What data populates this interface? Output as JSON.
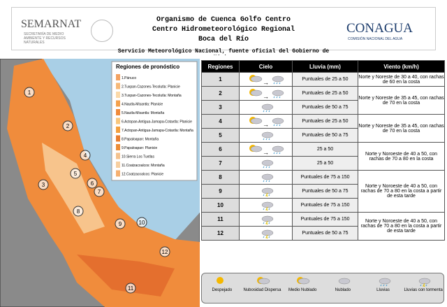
{
  "header": {
    "left_logo": "SEMARNAT",
    "left_subtitle": "SECRETARÍA DE MEDIO AMBIENTE Y RECURSOS NATURALES",
    "title_lines": [
      "Organismo de Cuenca Golfo Centro",
      "Centro Hidrometeorológico Regional",
      "Boca del Río"
    ],
    "service": "Servicio Meteorológico Nacional, fuente oficial del Gobierno de México",
    "right_logo": "CONAGUA",
    "right_subtitle": "COMISIÓN NACIONAL DEL AGUA"
  },
  "map": {
    "legend_title": "Regiones de pronóstico",
    "legend_items": [
      "1.Pánuco",
      "2.Tuxpan-Cazones-Tecolutla: Planicie",
      "3.Tuxpan-Cazones-Tecolutla: Montaña",
      "4.Nautla-Misantla: Planicie",
      "5.Nautla-Misantla: Montaña",
      "6.Actopan-Antigua-Jamapa-Cotaxtla: Planicie",
      "7.Actopan-Antigua-Jamapa-Cotaxtla: Montaña",
      "8.Papaloapan: Montaña",
      "9.Papaloapan: Planicie",
      "10.Sierra Los Tuxtlas",
      "11.Coatzacoalcos: Montaña",
      "12.Coatzacoalcos: Planicie"
    ],
    "region_labels": [
      "1",
      "2",
      "3",
      "4",
      "5",
      "6",
      "7",
      "8",
      "9",
      "10",
      "11",
      "12"
    ]
  },
  "table": {
    "headers": [
      "Regiones",
      "Cielo",
      "Lluvia (mm)",
      "Viento (km/h)"
    ],
    "groups": [
      {
        "wind": "Norte y Noreste de 30 a 40, con rachas de 60 en la costa",
        "rows": [
          {
            "region": "1",
            "rain": "Puntuales de 25 a 50"
          }
        ]
      },
      {
        "wind": "Norte y Noreste de 35 a 45, con rachas de 70 en la costa",
        "rows": [
          {
            "region": "2",
            "rain": "Puntuales de 25 a 50"
          },
          {
            "region": "3",
            "rain": "Puntuales de 50 a 75"
          }
        ]
      },
      {
        "wind": "Norte y Noreste de 35 a 45, con rachas de 70 en la costa",
        "rows": [
          {
            "region": "4",
            "rain": "Puntuales de 25 a 50"
          },
          {
            "region": "5",
            "rain": "Puntuales de 50 a 75"
          }
        ]
      },
      {
        "wind": "Norte y Noroeste de 40 a 50, con rachas de 70 a 80 en la costa",
        "rows": [
          {
            "region": "6",
            "rain": "25 a 50"
          },
          {
            "region": "7",
            "rain": "25 a 50"
          }
        ]
      },
      {
        "wind": "Norte y Noroeste de 40 a 50, con rachas de 70 a 80 en la costa a partir de esta tarde",
        "rows": [
          {
            "region": "8",
            "rain": "Puntuales de 75 a 150"
          },
          {
            "region": "9",
            "rain": "Puntuales de 50 a 75"
          },
          {
            "region": "10",
            "rain": "Puntuales de 75 a 150"
          }
        ]
      },
      {
        "wind": "Norte y Noroeste de 40 a 50, con rachas de 70 a 80 en la costa a partir de esta tarde",
        "rows": [
          {
            "region": "11",
            "rain": "Puntuales de 75 a 150"
          },
          {
            "region": "12",
            "rain": "Puntuales de 50 a 75"
          }
        ]
      }
    ]
  },
  "sky_legend": [
    "Despejado",
    "Nubosidad Dispersa",
    "Medio Nublado",
    "Nublado",
    "Lluvias",
    "Lluvias con tormenta"
  ]
}
